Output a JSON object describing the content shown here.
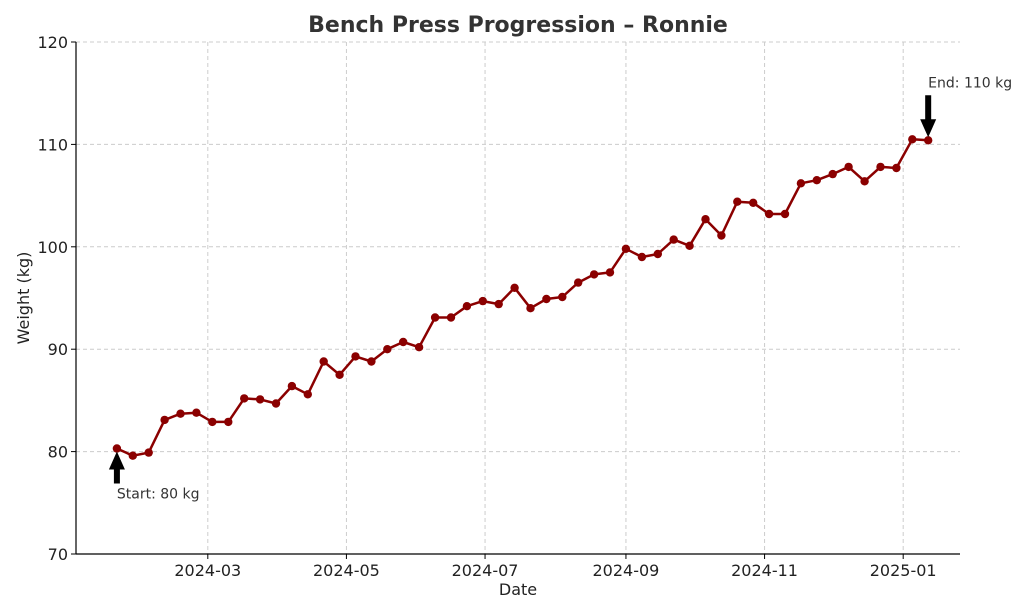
{
  "chart_data": {
    "type": "line",
    "title": "Bench Press Progression – Ronnie",
    "xlabel": "Date",
    "ylabel": "Weight (kg)",
    "ylim": [
      70,
      120
    ],
    "yticks": [
      70,
      80,
      90,
      100,
      110,
      120
    ],
    "xticks": [
      {
        "label": "2024-03",
        "date": "2024-03-01"
      },
      {
        "label": "2024-05",
        "date": "2024-05-01"
      },
      {
        "label": "2024-07",
        "date": "2024-07-01"
      },
      {
        "label": "2024-09",
        "date": "2024-09-01"
      },
      {
        "label": "2024-11",
        "date": "2024-11-01"
      },
      {
        "label": "2025-01",
        "date": "2025-01-01"
      }
    ],
    "xlim": [
      "2024-01-03",
      "2025-01-26"
    ],
    "grid": true,
    "series": [
      {
        "color": "#8b0000",
        "points": [
          [
            "2024-01-21",
            80.3
          ],
          [
            "2024-01-28",
            79.6
          ],
          [
            "2024-02-04",
            79.9
          ],
          [
            "2024-02-11",
            83.1
          ],
          [
            "2024-02-18",
            83.7
          ],
          [
            "2024-02-25",
            83.8
          ],
          [
            "2024-03-03",
            82.9
          ],
          [
            "2024-03-10",
            82.9
          ],
          [
            "2024-03-17",
            85.2
          ],
          [
            "2024-03-24",
            85.1
          ],
          [
            "2024-03-31",
            84.7
          ],
          [
            "2024-04-07",
            86.4
          ],
          [
            "2024-04-14",
            85.6
          ],
          [
            "2024-04-21",
            88.8
          ],
          [
            "2024-04-28",
            87.5
          ],
          [
            "2024-05-05",
            89.3
          ],
          [
            "2024-05-12",
            88.8
          ],
          [
            "2024-05-19",
            90.0
          ],
          [
            "2024-05-26",
            90.7
          ],
          [
            "2024-06-02",
            90.2
          ],
          [
            "2024-06-09",
            93.1
          ],
          [
            "2024-06-16",
            93.1
          ],
          [
            "2024-06-23",
            94.2
          ],
          [
            "2024-06-30",
            94.7
          ],
          [
            "2024-07-07",
            94.4
          ],
          [
            "2024-07-14",
            96.0
          ],
          [
            "2024-07-21",
            94.0
          ],
          [
            "2024-07-28",
            94.9
          ],
          [
            "2024-08-04",
            95.1
          ],
          [
            "2024-08-11",
            96.5
          ],
          [
            "2024-08-18",
            97.3
          ],
          [
            "2024-08-25",
            97.5
          ],
          [
            "2024-09-01",
            99.8
          ],
          [
            "2024-09-08",
            99.0
          ],
          [
            "2024-09-15",
            99.3
          ],
          [
            "2024-09-22",
            100.7
          ],
          [
            "2024-09-29",
            100.1
          ],
          [
            "2024-10-06",
            102.7
          ],
          [
            "2024-10-13",
            101.1
          ],
          [
            "2024-10-20",
            104.4
          ],
          [
            "2024-10-27",
            104.3
          ],
          [
            "2024-11-03",
            103.2
          ],
          [
            "2024-11-10",
            103.2
          ],
          [
            "2024-11-17",
            106.2
          ],
          [
            "2024-11-24",
            106.5
          ],
          [
            "2024-12-01",
            107.1
          ],
          [
            "2024-12-08",
            107.8
          ],
          [
            "2024-12-15",
            106.4
          ],
          [
            "2024-12-22",
            107.8
          ],
          [
            "2024-12-29",
            107.7
          ],
          [
            "2025-01-05",
            110.5
          ],
          [
            "2025-01-12",
            110.4
          ]
        ]
      }
    ],
    "annotations": [
      {
        "text": "Start: 80 kg",
        "target": [
          "2024-01-21",
          80.3
        ],
        "arrow": "up"
      },
      {
        "text": "End: 110 kg",
        "target": [
          "2025-01-12",
          110.4
        ],
        "arrow": "down"
      }
    ]
  }
}
